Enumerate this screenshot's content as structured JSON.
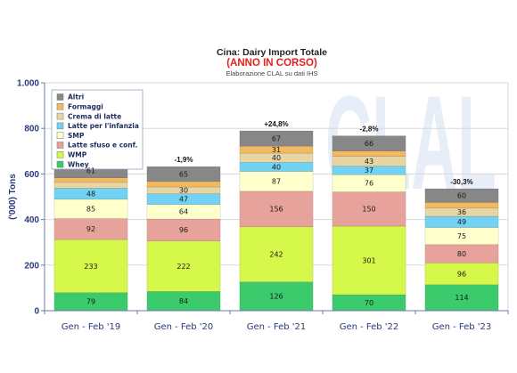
{
  "chart_data": {
    "type": "bar",
    "stacked": true,
    "title": "Cina: Dairy Import Totale",
    "subtitle": "(ANNO IN CORSO)",
    "source_note": "Elaborazione CLAL su dati IHS",
    "xlabel": "",
    "ylabel": "('000) Tons",
    "ylim": [
      0,
      1000
    ],
    "y_ticks": [
      0,
      200,
      400,
      600,
      800,
      1000
    ],
    "y_tick_labels": [
      "0",
      "200",
      "400",
      "600",
      "800",
      "1.000"
    ],
    "categories": [
      "Gen - Feb '19",
      "Gen - Feb '20",
      "Gen - Feb '21",
      "Gen - Feb '22",
      "Gen - Feb '23"
    ],
    "series": [
      {
        "name": "Whey",
        "color": "#3ccb6c",
        "values": [
          79,
          84,
          126,
          70,
          114
        ],
        "labels": [
          "79",
          "84",
          "126",
          "70",
          "114"
        ]
      },
      {
        "name": "WMP",
        "color": "#d6f84a",
        "values": [
          233,
          222,
          242,
          301,
          96
        ],
        "labels": [
          "233",
          "222",
          "242",
          "301",
          "96"
        ]
      },
      {
        "name": "Latte sfuso e conf.",
        "color": "#e6a29b",
        "values": [
          92,
          96,
          156,
          150,
          80
        ],
        "labels": [
          "92",
          "96",
          "156",
          "150",
          "80"
        ]
      },
      {
        "name": "SMP",
        "color": "#ffffcc",
        "values": [
          85,
          64,
          87,
          76,
          75
        ],
        "labels": [
          "85",
          "64",
          "87",
          "76",
          "75"
        ]
      },
      {
        "name": "Latte per l'infanzia",
        "color": "#72d2f4",
        "values": [
          48,
          47,
          40,
          37,
          49
        ],
        "labels": [
          "48",
          "47",
          "40",
          "37",
          "49"
        ]
      },
      {
        "name": "Crema di latte",
        "color": "#e8d5a4",
        "values": [
          26,
          30,
          40,
          43,
          36
        ],
        "labels": [
          "",
          "30",
          "40",
          "43",
          "36"
        ]
      },
      {
        "name": "Formaggi",
        "color": "#f2ba60",
        "values": [
          20,
          24,
          31,
          24,
          25
        ],
        "labels": [
          "",
          "",
          "31",
          "",
          ""
        ]
      },
      {
        "name": "Altri",
        "color": "#878787",
        "values": [
          61,
          65,
          67,
          66,
          60
        ],
        "labels": [
          "61",
          "65",
          "67",
          "66",
          "60"
        ]
      }
    ],
    "change_labels": [
      "",
      "-1,9%",
      "+24,8%",
      "-2,8%",
      "-30,3%"
    ],
    "grid": true,
    "legend_position": "top-left",
    "watermark": "CLAL"
  }
}
